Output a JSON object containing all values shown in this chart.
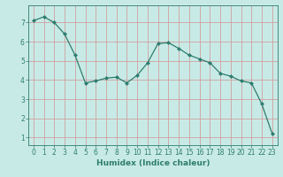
{
  "x": [
    0,
    1,
    2,
    3,
    4,
    5,
    6,
    7,
    8,
    9,
    10,
    11,
    12,
    13,
    14,
    15,
    16,
    17,
    18,
    19,
    20,
    21,
    22,
    23
  ],
  "y": [
    7.1,
    7.3,
    7.0,
    6.4,
    5.3,
    3.85,
    3.95,
    4.1,
    4.15,
    3.85,
    4.25,
    4.9,
    5.9,
    5.95,
    5.65,
    5.3,
    5.1,
    4.9,
    4.35,
    4.2,
    3.95,
    3.85,
    2.75,
    1.2
  ],
  "line_color": "#2e7d6e",
  "marker": "D",
  "markersize": 2.0,
  "linewidth": 0.9,
  "bg_color": "#c8eae6",
  "grid_color": "#d0a0a0",
  "xlabel": "Humidex (Indice chaleur)",
  "xlabel_fontsize": 6.5,
  "tick_fontsize": 5.5,
  "ylim": [
    0.6,
    7.9
  ],
  "xlim": [
    -0.5,
    23.5
  ],
  "yticks": [
    1,
    2,
    3,
    4,
    5,
    6,
    7
  ],
  "xticks": [
    0,
    1,
    2,
    3,
    4,
    5,
    6,
    7,
    8,
    9,
    10,
    11,
    12,
    13,
    14,
    15,
    16,
    17,
    18,
    19,
    20,
    21,
    22,
    23
  ]
}
